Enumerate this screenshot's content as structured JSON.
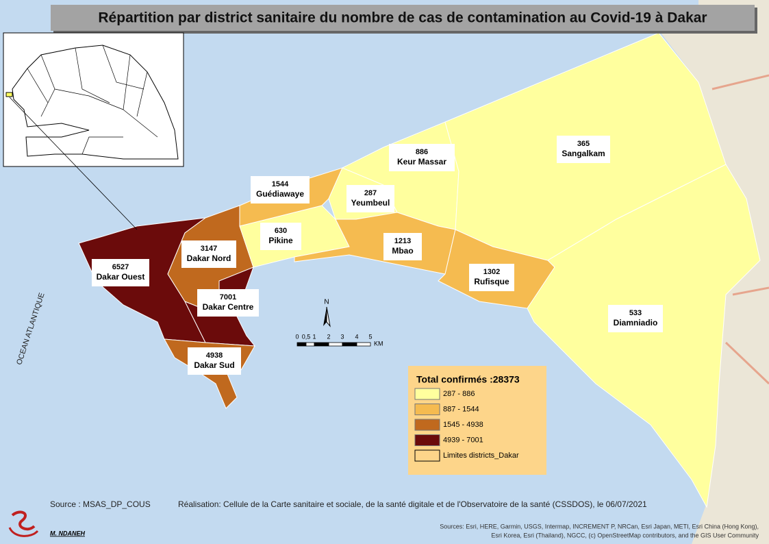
{
  "title": "Répartition par district sanitaire du nombre de cas de contamination au Covid-19 à Dakar",
  "districts": [
    {
      "name": "Dakar Ouest",
      "cases": 6527,
      "color": "#6b0b0b"
    },
    {
      "name": "Dakar Nord",
      "cases": 3147,
      "color": "#c0691e"
    },
    {
      "name": "Dakar Centre",
      "cases": 7001,
      "color": "#6b0b0b"
    },
    {
      "name": "Dakar Sud",
      "cases": 4938,
      "color": "#c0691e"
    },
    {
      "name": "Pikine",
      "cases": 630,
      "color": "#ffff9e"
    },
    {
      "name": "Guédiawaye",
      "cases": 1544,
      "color": "#f5bb50"
    },
    {
      "name": "Yeumbeul",
      "cases": 287,
      "color": "#ffff9e"
    },
    {
      "name": "Keur Massar",
      "cases": 886,
      "color": "#ffff9e"
    },
    {
      "name": "Mbao",
      "cases": 1213,
      "color": "#f5bb50"
    },
    {
      "name": "Rufisque",
      "cases": 1302,
      "color": "#f5bb50"
    },
    {
      "name": "Sangalkam",
      "cases": 365,
      "color": "#ffff9e"
    },
    {
      "name": "Diamniadio",
      "cases": 533,
      "color": "#ffff9e"
    }
  ],
  "legend": {
    "title": "Total confirmés :28373",
    "classes": [
      {
        "label": "287 - 886",
        "color": "#ffff9e"
      },
      {
        "label": "887 - 1544",
        "color": "#f5bb50"
      },
      {
        "label": "1545 - 4938",
        "color": "#c0691e"
      },
      {
        "label": "4939 - 7001",
        "color": "#6b0b0b"
      }
    ],
    "boundary_label": "Limites districts_Dakar"
  },
  "scale_bar": {
    "labels": [
      "0",
      "0,5",
      "1",
      "2",
      "3",
      "4",
      "5"
    ],
    "unit": "KM"
  },
  "north": "N",
  "ocean_label": "OCEAN ATLANTIQUE",
  "source": "Source : MSAS_DP_COUS",
  "realisation": "Réalisation: Cellule de la Carte sanitaire et sociale, de la santé digitale et de l'Observatoire de la santé (CSSDOS), le 06/07/2021",
  "credits": [
    "Sources: Esri, HERE, Garmin, USGS, Intermap, INCREMENT P, NRCan, Esri Japan, METI, Esri China (Hong Kong),",
    "Esri Korea, Esri (Thailand), NGCC, (c) OpenStreetMap contributors, and the GIS User Community"
  ],
  "author": "M. NDANEH"
}
